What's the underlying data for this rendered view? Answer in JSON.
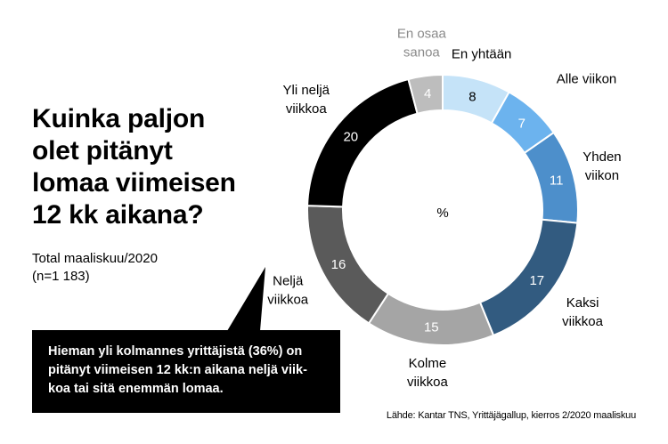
{
  "header": {
    "title": "Kuinka paljon\nolet pitänyt\nlomaa viimeisen\n12 kk aikana?",
    "subtitle": "Total maaliskuu/2020\n(n=1 183)"
  },
  "callout": {
    "text": "Hieman yli kolmannes yrittäjistä (36%) on\npitänyt viimeisen 12 kk:n aikana neljä viik-\nkoa tai sitä enemmän lomaa."
  },
  "source": "Lähde: Kantar TNS, Yrittäjägallup, kierros 2/2020 maaliskuu",
  "chart_data": {
    "type": "pie",
    "donut": true,
    "center_label": "%",
    "categories": [
      "En yhtään",
      "Alle viikon",
      "Yhden viikon",
      "Kaksi viikkoa",
      "Kolme viikkoa",
      "Neljä viikkoa",
      "Yli neljä viikkoa",
      "En osaa sanoa"
    ],
    "values": [
      8,
      7,
      11,
      17,
      15,
      16,
      20,
      4
    ],
    "colors": [
      "#c5e3f8",
      "#6cb3ee",
      "#4d8fcb",
      "#325b80",
      "#a5a5a5",
      "#5a5a5a",
      "#000000",
      "#bdbdbd"
    ],
    "value_text_colors": [
      "#000000",
      "#ffffff",
      "#ffffff",
      "#ffffff",
      "#ffffff",
      "#ffffff",
      "#ffffff",
      "#ffffff"
    ],
    "label_lines": [
      [
        "En yhtään"
      ],
      [
        "Alle viikon"
      ],
      [
        "Yhden",
        "viikon"
      ],
      [
        "Kaksi",
        "viikkoa"
      ],
      [
        "Kolme",
        "viikkoa"
      ],
      [
        "Neljä",
        "viikkoa"
      ],
      [
        "Yli neljä",
        "viikkoa"
      ],
      [
        "En osaa",
        "sanoa"
      ]
    ],
    "legend": "none"
  }
}
